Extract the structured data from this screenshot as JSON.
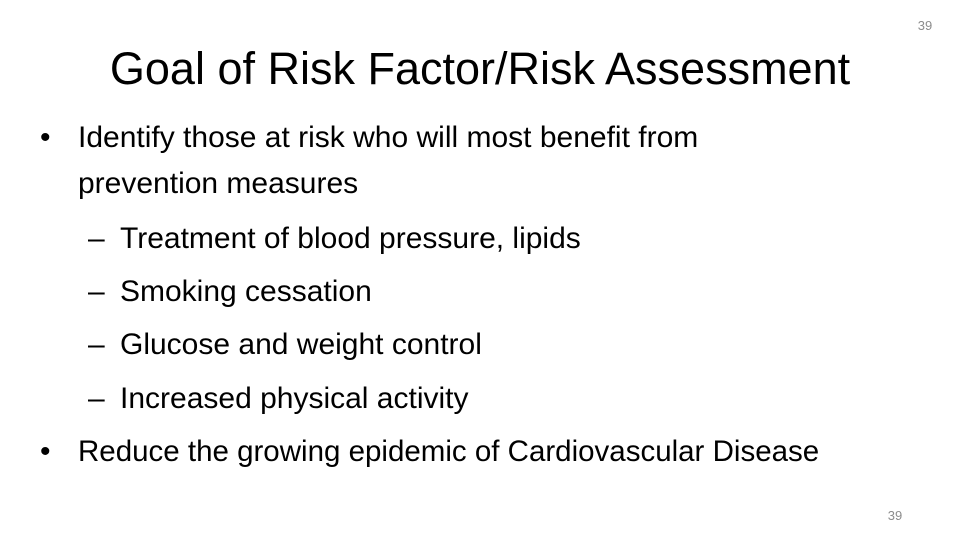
{
  "slide_number_top": "39",
  "slide_number_bottom": "39",
  "title": "Goal of Risk Factor/Risk Assessment",
  "bullets": [
    {
      "text_line1": "Identify those at risk who will most benefit from",
      "text_line2": "prevention measures",
      "sub": [
        "Treatment of blood pressure, lipids",
        "Smoking cessation",
        "Glucose and weight control",
        "Increased physical activity"
      ]
    },
    {
      "text": "Reduce the growing epidemic of Cardiovascular Disease"
    }
  ],
  "bullet_symbol": "•",
  "sub_symbol": "–"
}
